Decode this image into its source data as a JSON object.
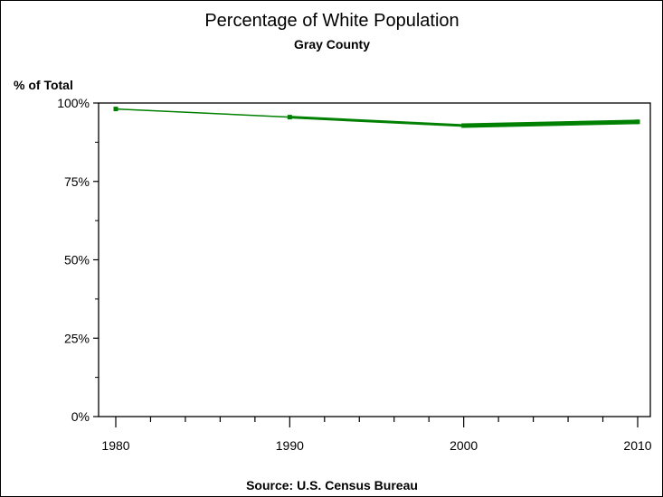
{
  "chart_data": {
    "type": "line",
    "title": "Percentage of White Population",
    "subtitle": "Gray County",
    "ylabel": "% of Total",
    "xlabel": "",
    "footnote": "Source: U.S. Census Bureau",
    "x": [
      1980,
      1990,
      2000,
      2010
    ],
    "series": [
      {
        "name": "White",
        "values": [
          98.1,
          95.5,
          92.8,
          94.0
        ],
        "color": "#008000"
      }
    ],
    "xlim": [
      1979.5,
      2010.4
    ],
    "ylim": [
      0,
      100
    ],
    "xticks": [
      1980,
      1990,
      2000,
      2010
    ],
    "xtick_labels": [
      "1980",
      "1990",
      "2000",
      "2010"
    ],
    "yticks": [
      0,
      25,
      50,
      75,
      100
    ],
    "ytick_labels": [
      "0%",
      "25%",
      "50%",
      "75%",
      "100%"
    ],
    "grid": false
  }
}
